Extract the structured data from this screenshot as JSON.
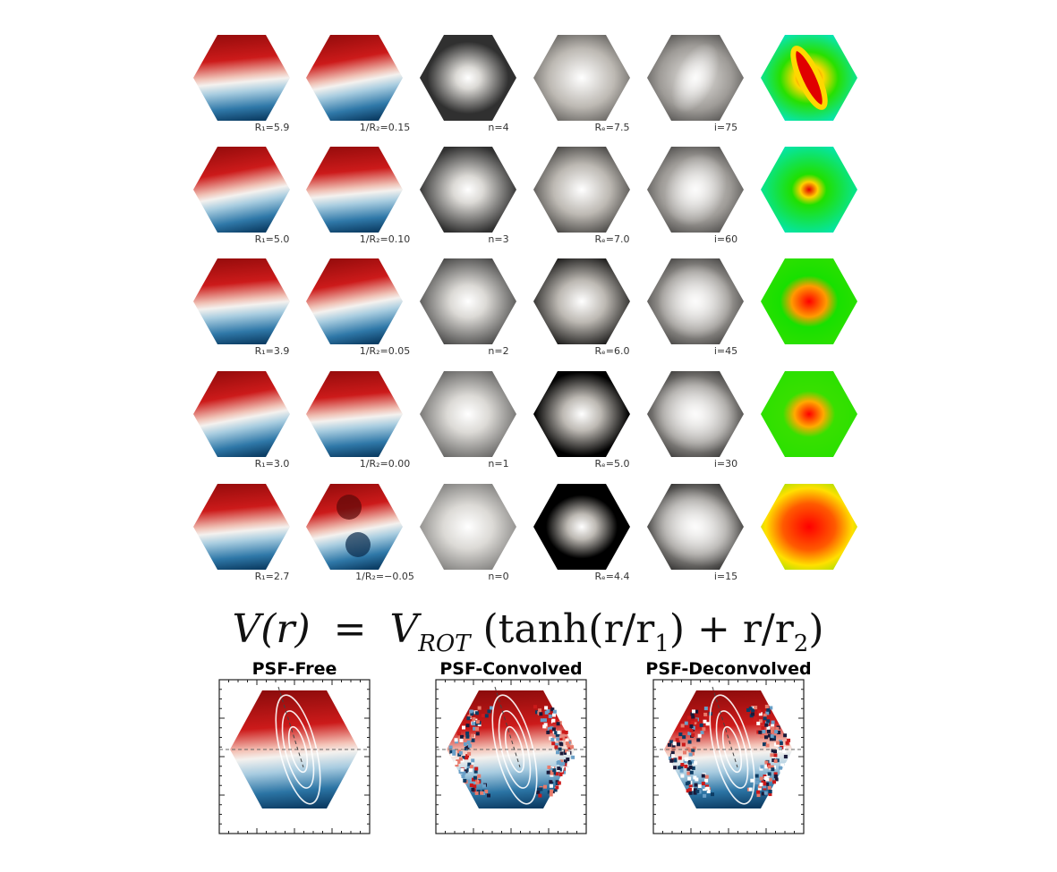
{
  "grid": {
    "rows": [
      {
        "cells": [
          {
            "kind": "velocity",
            "label": "R₁=5.9",
            "tilt": 0.15,
            "v2": 0.0
          },
          {
            "kind": "velocity",
            "label": "1/R₂=0.15",
            "tilt": 0.35,
            "v2": 0.15
          },
          {
            "kind": "sersic",
            "label": "n=4"
          },
          {
            "kind": "radius",
            "label": "Rₑ=7.5"
          },
          {
            "kind": "incl",
            "label": "i=75"
          },
          {
            "kind": "heat",
            "variant": "elongated"
          }
        ]
      },
      {
        "cells": [
          {
            "kind": "velocity",
            "label": "R₁=5.0",
            "tilt": 0.15,
            "v2": 0.0
          },
          {
            "kind": "velocity",
            "label": "1/R₂=0.10",
            "tilt": 0.3,
            "v2": 0.1
          },
          {
            "kind": "sersic",
            "label": "n=3"
          },
          {
            "kind": "radius",
            "label": "Rₑ=7.0"
          },
          {
            "kind": "incl",
            "label": "i=60"
          },
          {
            "kind": "heat",
            "variant": "spot"
          }
        ]
      },
      {
        "cells": [
          {
            "kind": "velocity",
            "label": "R₁=3.9",
            "tilt": 0.25,
            "v2": 0.0
          },
          {
            "kind": "velocity",
            "label": "1/R₂=0.05",
            "tilt": 0.3,
            "v2": 0.05
          },
          {
            "kind": "sersic",
            "label": "n=2"
          },
          {
            "kind": "radius",
            "label": "Rₑ=6.0"
          },
          {
            "kind": "incl",
            "label": "i=45"
          },
          {
            "kind": "heat",
            "variant": "oval"
          }
        ]
      },
      {
        "cells": [
          {
            "kind": "velocity",
            "label": "R₁=3.0",
            "tilt": 0.25,
            "v2": 0.0
          },
          {
            "kind": "velocity",
            "label": "1/R₂=0.00",
            "tilt": 0.3,
            "v2": 0.0
          },
          {
            "kind": "sersic",
            "label": "n=1"
          },
          {
            "kind": "radius",
            "label": "Rₑ=5.0"
          },
          {
            "kind": "incl",
            "label": "i=30"
          },
          {
            "kind": "heat",
            "variant": "round"
          }
        ]
      },
      {
        "cells": [
          {
            "kind": "velocity",
            "label": "R₁=2.7",
            "tilt": 0.25,
            "v2": 0.0
          },
          {
            "kind": "velocity",
            "label": "1/R₂=−0.05",
            "tilt": 0.3,
            "v2": -0.05
          },
          {
            "kind": "sersic",
            "label": "n=0"
          },
          {
            "kind": "radius",
            "label": "Rₑ=4.4"
          },
          {
            "kind": "incl",
            "label": "i=15"
          },
          {
            "kind": "heat",
            "variant": "wide"
          }
        ]
      }
    ]
  },
  "equation": {
    "lhs": "V(r)",
    "equals": "=",
    "v": "V",
    "rot": "ROT",
    "paren_open": "(tanh(r/r",
    "sub1": "1",
    "mid": ") + r/r",
    "sub2": "2",
    "paren_close": ")"
  },
  "panels": [
    {
      "title": "PSF-Free",
      "noise": 0
    },
    {
      "title": "PSF-Convolved",
      "noise": 1
    },
    {
      "title": "PSF-Deconvolved",
      "noise": 2
    }
  ],
  "colors": {
    "red": "#cc1a1a",
    "blue": "#1a5a8a",
    "white": "#f4f1ee",
    "contour": "#ffffff"
  }
}
